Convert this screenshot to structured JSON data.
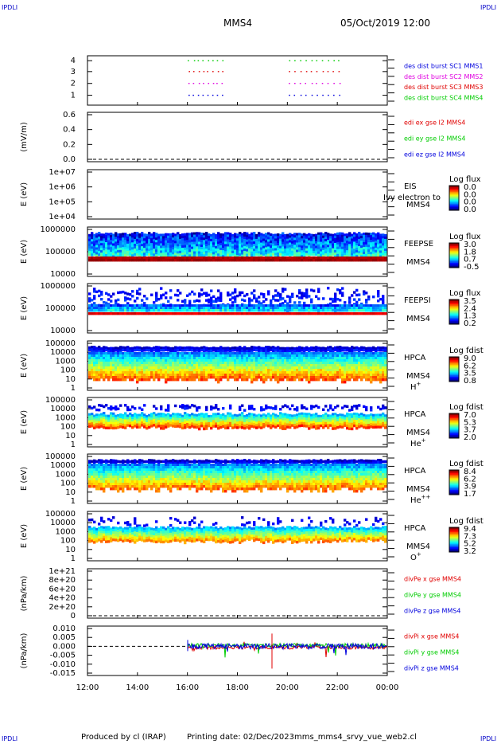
{
  "corner_label": "IPDLI",
  "header": {
    "spacecraft": "MMS4",
    "datetime": "05/Oct/2019 12:00"
  },
  "footer": {
    "produced": "Produced by cl (IRAP)",
    "printing": "Printing date: 02/Dec/2023",
    "script": "mms_mms4_srvy_vue_web2.cl"
  },
  "time_axis": [
    "12:00",
    "14:00",
    "16:00",
    "18:00",
    "20:00",
    "22:00",
    "00:00"
  ],
  "colors": {
    "red": "#e00000",
    "magenta": "#e000e0",
    "green": "#00cc00",
    "blue": "#0000dd"
  },
  "chart_data": [
    {
      "id": "burst",
      "type": "scatter",
      "yticks": [
        "4",
        "3",
        "2",
        "1"
      ],
      "legend": [
        {
          "text": "des dist burst SC1 MMS1",
          "color": "#0000dd"
        },
        {
          "text": "des dist burst SC2 MMS2",
          "color": "#e000e0"
        },
        {
          "text": "des dist burst SC3 MMS3",
          "color": "#e00000"
        },
        {
          "text": "des dist burst SC4 MMS4",
          "color": "#00cc00"
        }
      ],
      "series": [
        {
          "level": 4,
          "color": "#00cc00"
        },
        {
          "level": 3,
          "color": "#e00000"
        },
        {
          "level": 2,
          "color": "#e000e0"
        },
        {
          "level": 1,
          "color": "#0000dd"
        }
      ]
    },
    {
      "id": "edi",
      "type": "line",
      "ylabel": "(mV/m)",
      "yticks": [
        "0.6",
        "0.4",
        "0.2",
        "0.0"
      ],
      "legend": [
        {
          "text": "edi ex gse l2 MMS4",
          "color": "#e00000"
        },
        {
          "text": "edi ey gse l2 MMS4",
          "color": "#00cc00"
        },
        {
          "text": "edi ez gse l2 MMS4",
          "color": "#0000dd"
        }
      ]
    },
    {
      "id": "eis",
      "type": "heatmap",
      "ylabel": "E (eV)",
      "yticks": [
        "1e+07",
        "1e+06",
        "1e+05",
        "1e+04"
      ],
      "side": [
        "EIS",
        "MMS4"
      ],
      "overlay": "Ivy electron to",
      "cbar_title": "Log flux",
      "cbar_ticks": [
        "0.0",
        "0.0",
        "0.0",
        "0.0"
      ]
    },
    {
      "id": "feepse",
      "type": "heatmap",
      "ylabel": "E (eV)",
      "yticks": [
        "1000000",
        "100000",
        "10000"
      ],
      "side": [
        "FEEPSE",
        "MMS4"
      ],
      "cbar_title": "Log flux",
      "cbar_ticks": [
        "3.0",
        "1.8",
        "0.7",
        "-0.5"
      ]
    },
    {
      "id": "feepsi",
      "type": "heatmap",
      "ylabel": "E (eV)",
      "yticks": [
        "1000000",
        "100000",
        "10000"
      ],
      "side": [
        "FEEPSI",
        "MMS4"
      ],
      "cbar_title": "Log flux",
      "cbar_ticks": [
        "3.5",
        "2.4",
        "1.3",
        "0.2"
      ]
    },
    {
      "id": "hpca_h",
      "type": "heatmap",
      "ylabel": "E (eV)",
      "yticks": [
        "100000",
        "10000",
        "1000",
        "100",
        "10",
        "1"
      ],
      "side": [
        "HPCA",
        "MMS4"
      ],
      "species": "H",
      "species_sup": "+",
      "cbar_title": "Log fdist",
      "cbar_ticks": [
        "9.0",
        "6.2",
        "3.5",
        "0.8"
      ]
    },
    {
      "id": "hpca_he",
      "type": "heatmap",
      "ylabel": "E (eV)",
      "yticks": [
        "100000",
        "10000",
        "1000",
        "100",
        "10",
        "1"
      ],
      "side": [
        "HPCA",
        "MMS4"
      ],
      "species": "He",
      "species_sup": "+",
      "cbar_title": "Log fdist",
      "cbar_ticks": [
        "7.0",
        "5.3",
        "3.7",
        "2.0"
      ]
    },
    {
      "id": "hpca_he2",
      "type": "heatmap",
      "ylabel": "E (eV)",
      "yticks": [
        "100000",
        "10000",
        "1000",
        "100",
        "10",
        "1"
      ],
      "side": [
        "HPCA",
        "MMS4"
      ],
      "species": "He",
      "species_sup": "++",
      "cbar_title": "Log fdist",
      "cbar_ticks": [
        "8.4",
        "6.2",
        "3.9",
        "1.7"
      ]
    },
    {
      "id": "hpca_o",
      "type": "heatmap",
      "ylabel": "E (eV)",
      "yticks": [
        "100000",
        "10000",
        "1000",
        "100",
        "10",
        "1"
      ],
      "side": [
        "HPCA",
        "MMS4"
      ],
      "species": "O",
      "species_sup": "+",
      "cbar_title": "Log fdist",
      "cbar_ticks": [
        "9.4",
        "7.3",
        "5.2",
        "3.2"
      ]
    },
    {
      "id": "divpe",
      "type": "line",
      "ylabel": "(nPa/km)",
      "yticks": [
        "1e+21",
        "8e+20",
        "6e+20",
        "4e+20",
        "2e+20",
        "0"
      ],
      "legend": [
        {
          "text": "divPe x gse MMS4",
          "color": "#e00000"
        },
        {
          "text": "divPe y gse MMS4",
          "color": "#00cc00"
        },
        {
          "text": "divPe z gse MMS4",
          "color": "#0000dd"
        }
      ]
    },
    {
      "id": "divpi",
      "type": "line",
      "ylabel": "(nPa/km)",
      "yticks": [
        "0.010",
        "0.005",
        "0.000",
        "-0.005",
        "-0.010",
        "-0.015"
      ],
      "legend": [
        {
          "text": "divPi x gse MMS4",
          "color": "#e00000"
        },
        {
          "text": "divPi y gse MMS4",
          "color": "#00cc00"
        },
        {
          "text": "divPi z gse MMS4",
          "color": "#0000dd"
        }
      ]
    }
  ]
}
